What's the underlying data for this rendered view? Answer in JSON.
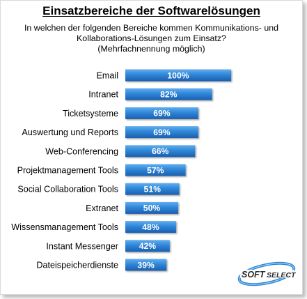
{
  "chart_data": {
    "type": "bar",
    "orientation": "horizontal",
    "title": "Einsatzbereiche der Softwarelösungen",
    "subtitle": [
      "In welchen der folgenden Bereiche kommen Kommunikations- und",
      "Kollaborations-Lösungen zum Einsatz?",
      "(Mehrfachnennung möglich)"
    ],
    "categories": [
      "Email",
      "Intranet",
      "Ticketsysteme",
      "Auswertung und Reports",
      "Web-Conferencing",
      "Projektmanagement Tools",
      "Social Collaboration Tools",
      "Extranet",
      "Wissensmanagement Tools",
      "Instant Messenger",
      "Dateispeicherdienste"
    ],
    "values": [
      100,
      82,
      69,
      69,
      66,
      57,
      51,
      50,
      48,
      42,
      39
    ],
    "value_labels": [
      "100%",
      "82%",
      "69%",
      "69%",
      "66%",
      "57%",
      "51%",
      "50%",
      "48%",
      "42%",
      "39%"
    ],
    "value_unit": "%",
    "xlim": [
      0,
      100
    ],
    "xlabel": "",
    "ylabel": "",
    "grid": false,
    "legend": "none",
    "bar_color": "#2f86d8"
  },
  "brand": {
    "logo_text_1": "SOFT",
    "logo_text_2": "SELECT",
    "accent": "#2f86d8"
  }
}
